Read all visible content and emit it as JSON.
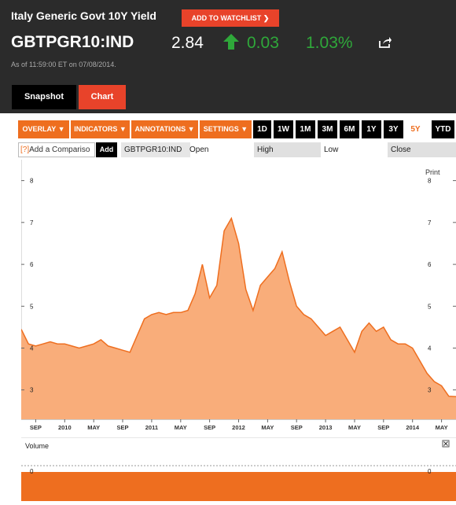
{
  "header": {
    "title": "Italy Generic Govt 10Y Yield",
    "watchlist_label": "ADD TO WATCHLIST",
    "ticker": "GBTPGR10:IND",
    "price": "2.84",
    "change": "0.03",
    "change_pct": "1.03%",
    "as_of": "As of 11:59:00 ET on 07/08/2014.",
    "up_color": "#2fa83a"
  },
  "tabs": {
    "snapshot": "Snapshot",
    "chart": "Chart"
  },
  "toolbar": {
    "overlay": "OVERLAY",
    "indicators": "INDICATORS",
    "annotations": "ANNOTATIONS",
    "settings": "SETTINGS",
    "ranges": [
      "1D",
      "1W",
      "1M",
      "3M",
      "6M",
      "1Y",
      "3Y",
      "5Y",
      "YTD"
    ],
    "active_range": "5Y"
  },
  "compare": {
    "help": "[?]",
    "placeholder": "Add a Compariso",
    "add_label": "Add",
    "symbol": "GBTPGR10:IND",
    "open_label": "Open",
    "high_label": "High",
    "low_label": "Low",
    "close_label": "Close"
  },
  "chart": {
    "print_label": "Print",
    "volume_label": "Volume",
    "volume_left": "0",
    "volume_right": "0",
    "close_icon": "close-icon",
    "accent": "#ee6e1f"
  },
  "chart_data": {
    "type": "area",
    "title": "",
    "y_ticks": [
      3,
      4,
      5,
      6,
      7,
      8
    ],
    "ylim": [
      2.3,
      8.5
    ],
    "x_ticks": [
      "SEP",
      "2010",
      "MAY",
      "SEP",
      "2011",
      "MAY",
      "SEP",
      "2012",
      "MAY",
      "SEP",
      "2013",
      "MAY",
      "SEP",
      "2014",
      "MAY"
    ],
    "x_tick_dates": [
      "2009-09",
      "2010-01",
      "2010-05",
      "2010-09",
      "2011-01",
      "2011-05",
      "2011-09",
      "2012-01",
      "2012-05",
      "2012-09",
      "2013-01",
      "2013-05",
      "2013-09",
      "2014-01",
      "2014-05"
    ],
    "x_range": [
      "2009-07",
      "2014-07"
    ],
    "series": [
      {
        "x": [
          "2009-07",
          "2009-08",
          "2009-09",
          "2009-10",
          "2009-11",
          "2009-12",
          "2010-01",
          "2010-02",
          "2010-03",
          "2010-04",
          "2010-05",
          "2010-06",
          "2010-07",
          "2010-08",
          "2010-09",
          "2010-10",
          "2010-11",
          "2010-12",
          "2011-01",
          "2011-02",
          "2011-03",
          "2011-04",
          "2011-05",
          "2011-06",
          "2011-07",
          "2011-08",
          "2011-09",
          "2011-10",
          "2011-11",
          "2011-12",
          "2012-01",
          "2012-02",
          "2012-03",
          "2012-04",
          "2012-05",
          "2012-06",
          "2012-07",
          "2012-08",
          "2012-09",
          "2012-10",
          "2012-11",
          "2012-12",
          "2013-01",
          "2013-02",
          "2013-03",
          "2013-04",
          "2013-05",
          "2013-06",
          "2013-07",
          "2013-08",
          "2013-09",
          "2013-10",
          "2013-11",
          "2013-12",
          "2014-01",
          "2014-02",
          "2014-03",
          "2014-04",
          "2014-05",
          "2014-06",
          "2014-07"
        ],
        "values": [
          4.45,
          4.1,
          4.05,
          4.1,
          4.15,
          4.1,
          4.1,
          4.05,
          4.0,
          4.05,
          4.1,
          4.2,
          4.05,
          4.0,
          3.95,
          3.9,
          4.3,
          4.7,
          4.8,
          4.85,
          4.8,
          4.85,
          4.85,
          4.9,
          5.3,
          6.0,
          5.2,
          5.5,
          6.8,
          7.1,
          6.5,
          5.4,
          4.9,
          5.5,
          5.7,
          5.9,
          6.3,
          5.6,
          5.0,
          4.8,
          4.7,
          4.5,
          4.3,
          4.4,
          4.5,
          4.2,
          3.9,
          4.4,
          4.6,
          4.4,
          4.5,
          4.2,
          4.1,
          4.1,
          4.0,
          3.7,
          3.4,
          3.2,
          3.1,
          2.85,
          2.84
        ]
      }
    ],
    "grid": false,
    "color": "#ee6e1f"
  }
}
